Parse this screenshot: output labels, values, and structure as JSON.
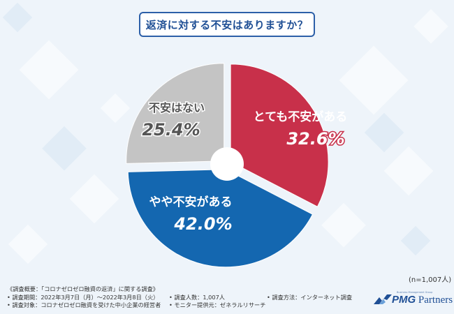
{
  "title": "返済に対する不安はありますか？",
  "chart_data": {
    "type": "pie",
    "title": "返済に対する不安はありますか？",
    "unit": "%",
    "slices": [
      {
        "label": "とても不安がある",
        "value": 32.6,
        "value_label": "32.6%",
        "color": "#c8304a"
      },
      {
        "label": "やや不安がある",
        "value": 42.0,
        "value_label": "42.0%",
        "color": "#1467b0"
      },
      {
        "label": "不安はない",
        "value": 25.4,
        "value_label": "25.4%",
        "color": "#c4c4c4"
      }
    ],
    "sample_note": "(n=1,007人)"
  },
  "footer": {
    "heading": "《調査概要：「コロナゼロゼロ融資の返済」に関する調査》",
    "period": "• 調査期間：2022年3月7日（月）〜2022年3月8日（火）",
    "people": "• 調査人数：1,007人",
    "method": "• 調査方法：インターネット調査",
    "target": "• 調査対象：コロナゼロゼロ融資を受けた中小企業の経営者",
    "provider": "• モニター提供元：ゼネラルリサーチ"
  },
  "logo": {
    "brand": "PMG",
    "name": "Partners",
    "tagline": "Business Management Group"
  },
  "colors": {
    "background": "#eef4fa",
    "title_border": "#2c5fa8",
    "title_text": "#1f4f95"
  }
}
